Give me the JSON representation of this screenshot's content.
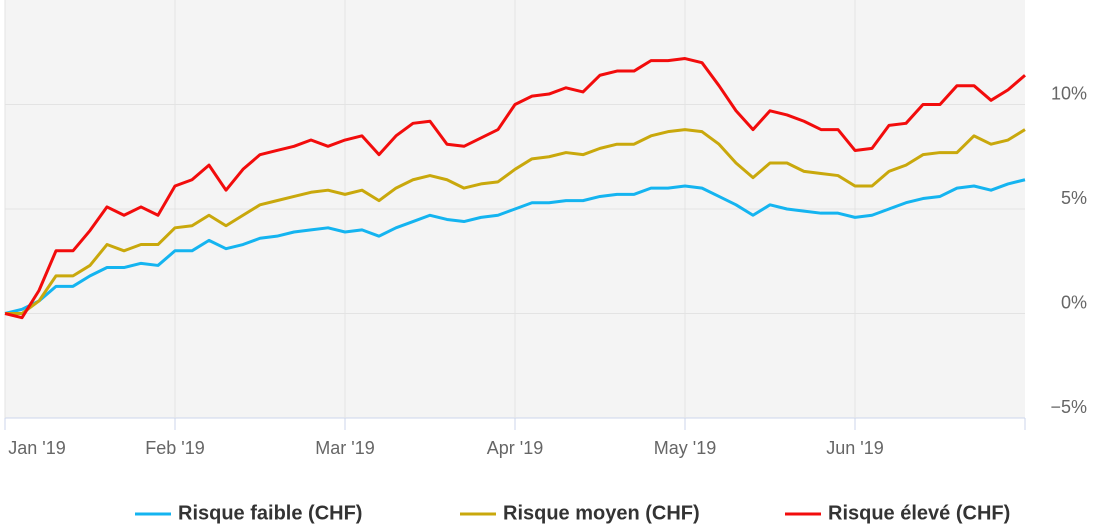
{
  "chart_data": {
    "type": "line",
    "categories": [
      "Jan '19",
      null,
      null,
      null,
      null,
      null,
      null,
      null,
      null,
      null,
      "Feb '19",
      null,
      null,
      null,
      null,
      null,
      null,
      null,
      null,
      null,
      "Mar '19",
      null,
      null,
      null,
      null,
      null,
      null,
      null,
      null,
      null,
      "Apr '19",
      null,
      null,
      null,
      null,
      null,
      null,
      null,
      null,
      null,
      "May '19",
      null,
      null,
      null,
      null,
      null,
      null,
      null,
      null,
      null,
      "Jun '19",
      null,
      null,
      null,
      null,
      null,
      null,
      null,
      null,
      null,
      null
    ],
    "series": [
      {
        "name": "Risque faible (CHF)",
        "color": "#14b4f0",
        "values": [
          0,
          0.2,
          0.6,
          1.3,
          1.3,
          1.8,
          2.2,
          2.2,
          2.4,
          2.3,
          3.0,
          3.0,
          3.5,
          3.1,
          3.3,
          3.6,
          3.7,
          3.9,
          4.0,
          4.1,
          3.9,
          4.0,
          3.7,
          4.1,
          4.4,
          4.7,
          4.5,
          4.4,
          4.6,
          4.7,
          5.0,
          5.3,
          5.3,
          5.4,
          5.4,
          5.6,
          5.7,
          5.7,
          6.0,
          6.0,
          6.1,
          6.0,
          5.6,
          5.2,
          4.7,
          5.2,
          5.0,
          4.9,
          4.8,
          4.8,
          4.6,
          4.7,
          5.0,
          5.3,
          5.5,
          5.6,
          6.0,
          6.1,
          5.9,
          6.2,
          6.4
        ]
      },
      {
        "name": "Risque moyen (CHF)",
        "color": "#c9a80c",
        "values": [
          0,
          0,
          0.6,
          1.8,
          1.8,
          2.3,
          3.3,
          3.0,
          3.3,
          3.3,
          4.1,
          4.2,
          4.7,
          4.2,
          4.7,
          5.2,
          5.4,
          5.6,
          5.8,
          5.9,
          5.7,
          5.9,
          5.4,
          6.0,
          6.4,
          6.6,
          6.4,
          6.0,
          6.2,
          6.3,
          6.9,
          7.4,
          7.5,
          7.7,
          7.6,
          7.9,
          8.1,
          8.1,
          8.5,
          8.7,
          8.8,
          8.7,
          8.1,
          7.2,
          6.5,
          7.2,
          7.2,
          6.8,
          6.7,
          6.6,
          6.1,
          6.1,
          6.8,
          7.1,
          7.6,
          7.7,
          7.7,
          8.5,
          8.1,
          8.3,
          8.8
        ]
      },
      {
        "name": "Risque élevé (CHF)",
        "color": "#f20c0c",
        "values": [
          0,
          -0.2,
          1.1,
          3.0,
          3.0,
          3.97,
          5.1,
          4.7,
          5.1,
          4.7,
          6.1,
          6.4,
          7.1,
          5.9,
          6.9,
          7.6,
          7.8,
          8.0,
          8.3,
          8.0,
          8.3,
          8.5,
          7.6,
          8.5,
          9.1,
          9.2,
          8.1,
          8.0,
          8.4,
          8.8,
          10.0,
          10.4,
          10.5,
          10.8,
          10.6,
          11.4,
          11.6,
          11.6,
          12.1,
          12.1,
          12.2,
          12.0,
          10.9,
          9.7,
          8.8,
          9.7,
          9.5,
          9.2,
          8.8,
          8.8,
          7.8,
          7.9,
          9.0,
          9.1,
          10.0,
          10.0,
          10.9,
          10.9,
          10.2,
          10.7,
          11.4
        ]
      }
    ],
    "ylim": [
      -5,
      15
    ],
    "yticks": [
      {
        "value": -5,
        "label": "−5%"
      },
      {
        "value": 0,
        "label": "0%"
      },
      {
        "value": 5,
        "label": "5%"
      },
      {
        "value": 10,
        "label": "10%"
      }
    ],
    "grid": true
  }
}
